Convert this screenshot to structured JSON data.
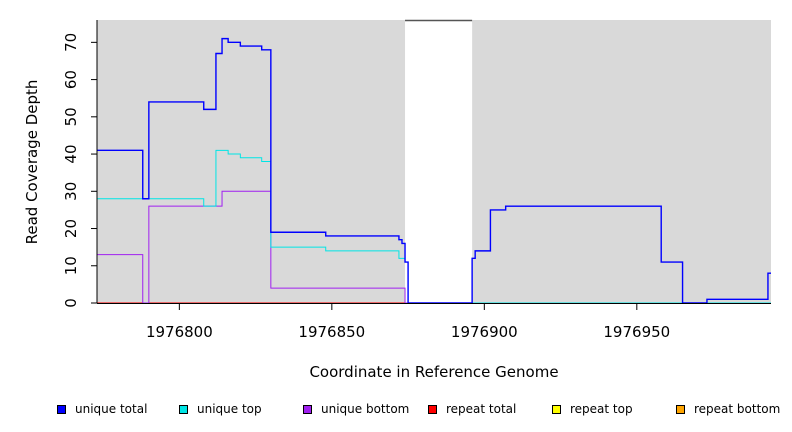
{
  "chart_data": {
    "type": "line",
    "title": "",
    "xlabel": "Coordinate in Reference Genome",
    "ylabel": "Read Coverage Depth",
    "xlim": [
      1976773,
      1976994
    ],
    "ylim": [
      0,
      76
    ],
    "x_ticks": [
      1976800,
      1976850,
      1976900,
      1976950
    ],
    "x_tick_labels": [
      "1976800",
      "1976850",
      "1976900",
      "1976950"
    ],
    "y_ticks": [
      0,
      10,
      20,
      30,
      40,
      50,
      60,
      70
    ],
    "y_tick_labels": [
      "0",
      "10",
      "20",
      "30",
      "40",
      "50",
      "60",
      "70"
    ],
    "background": "#d9d9d9",
    "gap_region": [
      1976874,
      1976896
    ],
    "grid": false,
    "legend_position": "bottom",
    "series": [
      {
        "name": "unique total",
        "color": "#0000ff",
        "steps": [
          [
            1976773,
            41
          ],
          [
            1976788,
            28
          ],
          [
            1976790,
            54
          ],
          [
            1976808,
            52
          ],
          [
            1976812,
            67
          ],
          [
            1976814,
            71
          ],
          [
            1976816,
            70
          ],
          [
            1976820,
            69
          ],
          [
            1976827,
            68
          ],
          [
            1976830,
            19
          ],
          [
            1976848,
            18
          ],
          [
            1976872,
            17
          ],
          [
            1976873,
            16
          ],
          [
            1976874,
            11
          ],
          [
            1976875,
            0
          ],
          [
            1976896,
            12
          ],
          [
            1976897,
            14
          ],
          [
            1976902,
            25
          ],
          [
            1976907,
            26
          ],
          [
            1976958,
            11
          ],
          [
            1976965,
            0
          ],
          [
            1976973,
            1
          ],
          [
            1976993,
            8
          ],
          [
            1976994,
            8
          ]
        ]
      },
      {
        "name": "unique top",
        "color": "#00e5e5",
        "steps": [
          [
            1976773,
            28
          ],
          [
            1976808,
            26
          ],
          [
            1976812,
            41
          ],
          [
            1976816,
            40
          ],
          [
            1976820,
            39
          ],
          [
            1976827,
            38
          ],
          [
            1976830,
            15
          ],
          [
            1976848,
            14
          ],
          [
            1976872,
            12
          ],
          [
            1976874,
            11
          ],
          [
            1976875,
            0
          ],
          [
            1976994,
            0
          ]
        ]
      },
      {
        "name": "unique bottom",
        "color": "#a020f0",
        "steps": [
          [
            1976773,
            13
          ],
          [
            1976788,
            0
          ],
          [
            1976790,
            26
          ],
          [
            1976814,
            30
          ],
          [
            1976830,
            4
          ],
          [
            1976874,
            0
          ],
          [
            1976994,
            0
          ]
        ]
      },
      {
        "name": "repeat total",
        "color": "#ff0000",
        "steps": [
          [
            1976773,
            0
          ],
          [
            1976994,
            0
          ]
        ]
      },
      {
        "name": "repeat top",
        "color": "#ffff00",
        "steps": [
          [
            1976773,
            0
          ],
          [
            1976994,
            0
          ]
        ]
      },
      {
        "name": "repeat bottom",
        "color": "#ffa500",
        "steps": [
          [
            1976773,
            0
          ],
          [
            1976994,
            0
          ]
        ]
      }
    ]
  }
}
